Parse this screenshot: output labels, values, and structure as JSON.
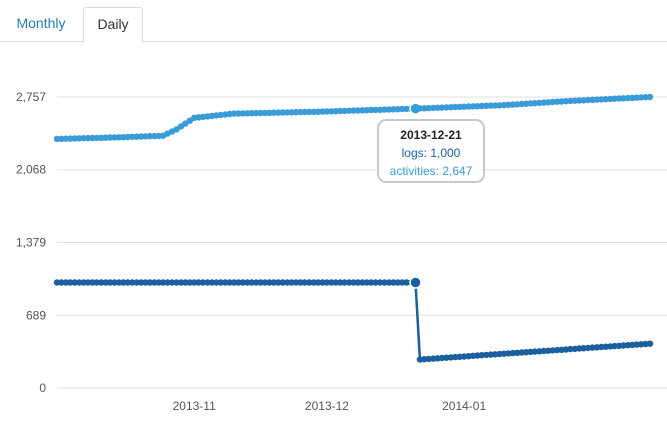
{
  "tabs": [
    {
      "label": "Monthly",
      "active": false
    },
    {
      "label": "Daily",
      "active": true
    }
  ],
  "chart_data": {
    "type": "line",
    "title": "",
    "xlabel": "",
    "ylabel": "",
    "ylim": [
      0,
      2757
    ],
    "y_ticks": [
      "0",
      "689",
      "1,379",
      "2,068",
      "2,757"
    ],
    "y_tick_values": [
      0,
      689,
      1379,
      2068,
      2757
    ],
    "x_ticks": [
      "2013-11",
      "2013-12",
      "2014-01"
    ],
    "x_tick_dates": [
      "2013-11-01",
      "2013-12-01",
      "2014-01-01"
    ],
    "x_range": [
      "2013-10-01",
      "2014-02-12"
    ],
    "grid": true,
    "colors": {
      "activities": "#3a9bd9",
      "logs": "#1a5f9e",
      "grid": "#e2e2e2"
    },
    "series": [
      {
        "key": "activities",
        "points": [
          [
            "2013-10-01",
            2360
          ],
          [
            "2013-10-15",
            2375
          ],
          [
            "2013-10-25",
            2390
          ],
          [
            "2013-10-28",
            2450
          ],
          [
            "2013-11-01",
            2560
          ],
          [
            "2013-11-10",
            2600
          ],
          [
            "2013-12-01",
            2620
          ],
          [
            "2013-12-21",
            2647
          ],
          [
            "2014-01-10",
            2680
          ],
          [
            "2014-01-25",
            2720
          ],
          [
            "2014-02-12",
            2757
          ]
        ]
      },
      {
        "key": "logs",
        "points": [
          [
            "2013-10-01",
            1000
          ],
          [
            "2013-12-21",
            1000
          ],
          [
            "2013-12-22",
            270
          ],
          [
            "2014-02-12",
            420
          ]
        ]
      }
    ],
    "tooltip": {
      "date": "2013-12-21",
      "logs": "logs: 1,000",
      "activities": "activities: 2,647"
    }
  }
}
